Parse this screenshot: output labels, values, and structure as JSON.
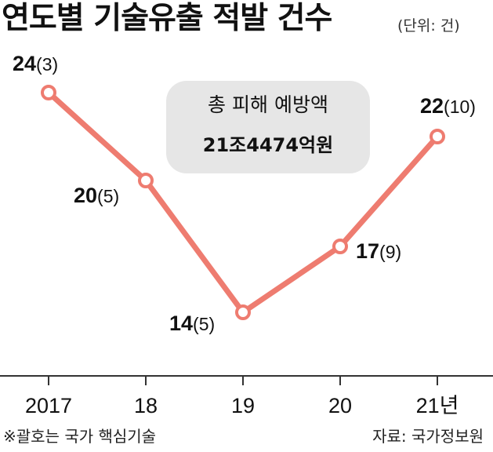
{
  "title": "연도별 기술유출 적발 건수",
  "unit": "(단위: 건)",
  "note": "※괄호는 국가 핵심기술",
  "source": "자료: 국가정보원",
  "annotation": {
    "line1": "총 피해 예방액",
    "line2": "21조4474억원"
  },
  "colors": {
    "line": "#ee7c70",
    "annotation_bg": "#e6e6e6",
    "axis": "#333333"
  },
  "chart_data": {
    "type": "line",
    "categories": [
      "2017",
      "18",
      "19",
      "20",
      "21년"
    ],
    "series": [
      {
        "values": [
          24,
          20,
          14,
          17,
          22
        ]
      }
    ],
    "core_tech_counts": [
      3,
      5,
      5,
      9,
      10
    ],
    "labels": [
      {
        "value": "24",
        "core": "(3)"
      },
      {
        "value": "20",
        "core": "(5)"
      },
      {
        "value": "14",
        "core": "(5)"
      },
      {
        "value": "17",
        "core": "(9)"
      },
      {
        "value": "22",
        "core": "(10)"
      }
    ],
    "ylim": [
      10,
      27
    ],
    "grid": false
  }
}
